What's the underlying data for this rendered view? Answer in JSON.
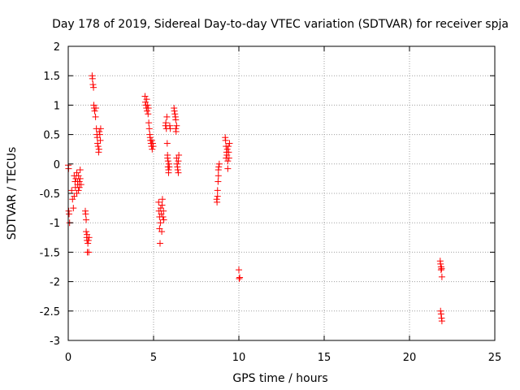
{
  "chart_data": {
    "type": "scatter",
    "title": "Day 178 of 2019, Sidereal Day-to-day VTEC variation (SDTVAR) for receiver spja",
    "xlabel": "GPS time / hours",
    "ylabel": "SDTVAR / TECUs",
    "xlim": [
      0,
      25
    ],
    "ylim": [
      -3,
      2
    ],
    "xticks": [
      "0",
      "5",
      "10",
      "15",
      "20",
      "25"
    ],
    "yticks": [
      "-3",
      "-2.5",
      "-2",
      "-1.5",
      "-1",
      "-0.5",
      "0",
      "0.5",
      "1",
      "1.5",
      "2"
    ],
    "grid": true,
    "marker": "+",
    "color": "#ff0000",
    "series": [
      {
        "name": "SDTVAR",
        "points": [
          [
            0.0,
            -0.02
          ],
          [
            0.02,
            -0.08
          ],
          [
            0.03,
            -0.8
          ],
          [
            0.05,
            -0.85
          ],
          [
            0.08,
            -1.0
          ],
          [
            0.2,
            -0.45
          ],
          [
            0.25,
            -0.6
          ],
          [
            0.3,
            -0.75
          ],
          [
            0.35,
            -0.55
          ],
          [
            0.35,
            -0.2
          ],
          [
            0.4,
            -0.3
          ],
          [
            0.42,
            -0.4
          ],
          [
            0.45,
            -0.25
          ],
          [
            0.5,
            -0.5
          ],
          [
            0.5,
            -0.15
          ],
          [
            0.55,
            -0.35
          ],
          [
            0.55,
            -0.3
          ],
          [
            0.6,
            -0.2
          ],
          [
            0.6,
            -0.45
          ],
          [
            0.65,
            -0.3
          ],
          [
            0.65,
            -0.4
          ],
          [
            0.7,
            -0.25
          ],
          [
            0.7,
            -0.1
          ],
          [
            0.75,
            -0.35
          ],
          [
            1.0,
            -0.8
          ],
          [
            1.02,
            -0.85
          ],
          [
            1.05,
            -0.95
          ],
          [
            1.05,
            -1.15
          ],
          [
            1.08,
            -1.25
          ],
          [
            1.1,
            -1.3
          ],
          [
            1.1,
            -1.2
          ],
          [
            1.12,
            -1.5
          ],
          [
            1.15,
            -1.35
          ],
          [
            1.18,
            -1.3
          ],
          [
            1.2,
            -1.5
          ],
          [
            1.22,
            -1.25
          ],
          [
            1.4,
            1.5
          ],
          [
            1.42,
            1.45
          ],
          [
            1.45,
            1.35
          ],
          [
            1.48,
            1.3
          ],
          [
            1.5,
            1.0
          ],
          [
            1.52,
            0.95
          ],
          [
            1.55,
            0.9
          ],
          [
            1.6,
            0.8
          ],
          [
            1.62,
            0.95
          ],
          [
            1.65,
            0.6
          ],
          [
            1.68,
            0.5
          ],
          [
            1.7,
            0.45
          ],
          [
            1.72,
            0.35
          ],
          [
            1.75,
            0.3
          ],
          [
            1.78,
            0.2
          ],
          [
            1.8,
            0.25
          ],
          [
            1.82,
            0.55
          ],
          [
            1.85,
            0.5
          ],
          [
            1.88,
            0.4
          ],
          [
            1.9,
            0.6
          ],
          [
            4.5,
            1.15
          ],
          [
            4.52,
            1.05
          ],
          [
            4.55,
            1.0
          ],
          [
            4.58,
            0.95
          ],
          [
            4.6,
            1.1
          ],
          [
            4.62,
            0.9
          ],
          [
            4.65,
            1.0
          ],
          [
            4.68,
            0.85
          ],
          [
            4.7,
            0.95
          ],
          [
            4.72,
            0.7
          ],
          [
            4.75,
            0.6
          ],
          [
            4.78,
            0.5
          ],
          [
            4.8,
            0.45
          ],
          [
            4.82,
            0.4
          ],
          [
            4.85,
            0.35
          ],
          [
            4.88,
            0.3
          ],
          [
            4.9,
            0.4
          ],
          [
            4.92,
            0.25
          ],
          [
            4.95,
            0.35
          ],
          [
            4.98,
            0.3
          ],
          [
            5.3,
            -0.65
          ],
          [
            5.32,
            -0.8
          ],
          [
            5.35,
            -0.9
          ],
          [
            5.35,
            -1.1
          ],
          [
            5.38,
            -1.35
          ],
          [
            5.4,
            -1.0
          ],
          [
            5.42,
            -0.75
          ],
          [
            5.45,
            -0.85
          ],
          [
            5.48,
            -1.15
          ],
          [
            5.5,
            -0.7
          ],
          [
            5.52,
            -0.6
          ],
          [
            5.55,
            -0.9
          ],
          [
            5.58,
            -0.8
          ],
          [
            5.6,
            -0.95
          ],
          [
            5.7,
            0.65
          ],
          [
            5.72,
            0.7
          ],
          [
            5.75,
            0.6
          ],
          [
            5.78,
            0.8
          ],
          [
            5.8,
            0.35
          ],
          [
            5.82,
            0.15
          ],
          [
            5.82,
            0.1
          ],
          [
            5.85,
            0.05
          ],
          [
            5.85,
            -0.05
          ],
          [
            5.88,
            -0.1
          ],
          [
            5.88,
            -0.15
          ],
          [
            5.9,
            0.0
          ],
          [
            5.92,
            -0.05
          ],
          [
            5.95,
            0.65
          ],
          [
            5.98,
            0.6
          ],
          [
            6.2,
            0.95
          ],
          [
            6.22,
            0.9
          ],
          [
            6.25,
            0.85
          ],
          [
            6.28,
            0.8
          ],
          [
            6.3,
            0.75
          ],
          [
            6.3,
            0.6
          ],
          [
            6.32,
            0.55
          ],
          [
            6.35,
            0.65
          ],
          [
            6.35,
            0.1
          ],
          [
            6.38,
            0.0
          ],
          [
            6.4,
            -0.05
          ],
          [
            6.42,
            -0.1
          ],
          [
            6.45,
            -0.15
          ],
          [
            6.45,
            0.05
          ],
          [
            6.48,
            0.15
          ],
          [
            8.7,
            -0.6
          ],
          [
            8.72,
            -0.65
          ],
          [
            8.75,
            -0.55
          ],
          [
            8.75,
            -0.45
          ],
          [
            8.78,
            -0.3
          ],
          [
            8.8,
            -0.2
          ],
          [
            8.8,
            -0.1
          ],
          [
            8.82,
            -0.05
          ],
          [
            8.85,
            0.0
          ],
          [
            9.2,
            0.45
          ],
          [
            9.22,
            0.4
          ],
          [
            9.25,
            0.3
          ],
          [
            9.25,
            0.1
          ],
          [
            9.28,
            0.2
          ],
          [
            9.3,
            0.15
          ],
          [
            9.32,
            0.25
          ],
          [
            9.35,
            0.05
          ],
          [
            9.35,
            -0.08
          ],
          [
            9.38,
            0.3
          ],
          [
            9.4,
            0.2
          ],
          [
            9.42,
            0.1
          ],
          [
            9.45,
            0.35
          ],
          [
            10.0,
            -1.8
          ],
          [
            10.02,
            -1.95
          ],
          [
            10.05,
            -1.93
          ],
          [
            21.8,
            -1.65
          ],
          [
            21.82,
            -1.7
          ],
          [
            21.85,
            -1.75
          ],
          [
            21.85,
            -1.8
          ],
          [
            21.88,
            -1.78
          ],
          [
            21.9,
            -1.92
          ],
          [
            21.82,
            -2.5
          ],
          [
            21.85,
            -2.55
          ],
          [
            21.88,
            -2.62
          ],
          [
            21.9,
            -2.67
          ]
        ]
      }
    ]
  }
}
